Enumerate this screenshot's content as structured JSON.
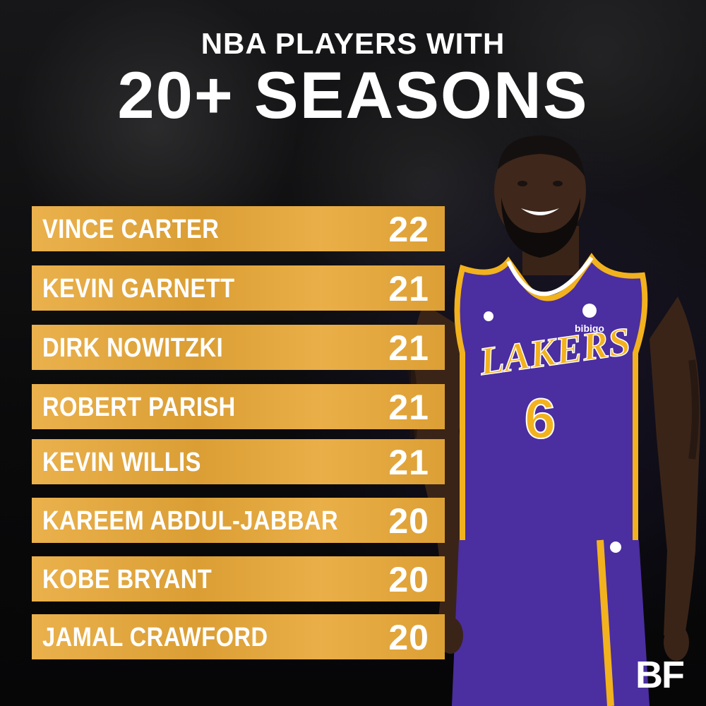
{
  "header": {
    "title_top": "NBA PLAYERS WITH",
    "title_main": "20+ SEASONS"
  },
  "players": [
    {
      "name": "VINCE CARTER",
      "seasons": "22"
    },
    {
      "name": "KEVIN GARNETT",
      "seasons": "21"
    },
    {
      "name": "DIRK NOWITZKI",
      "seasons": "21"
    },
    {
      "name": "ROBERT PARISH",
      "seasons": "21"
    },
    {
      "name": "KEVIN WILLIS",
      "seasons": "21"
    },
    {
      "name": "KAREEM ABDUL-JABBAR",
      "seasons": "20"
    },
    {
      "name": "KOBE BRYANT",
      "seasons": "20"
    },
    {
      "name": "JAMAL CRAWFORD",
      "seasons": "20"
    }
  ],
  "jersey": {
    "team": "LAKERS",
    "number": "6",
    "sponsor": "bibigo"
  },
  "logo": {
    "text": "BF"
  },
  "colors": {
    "row_bg": "#e8a838",
    "jersey_purple": "#4b2ea0",
    "jersey_gold": "#f2b21e",
    "background": "#0b0b0c"
  }
}
